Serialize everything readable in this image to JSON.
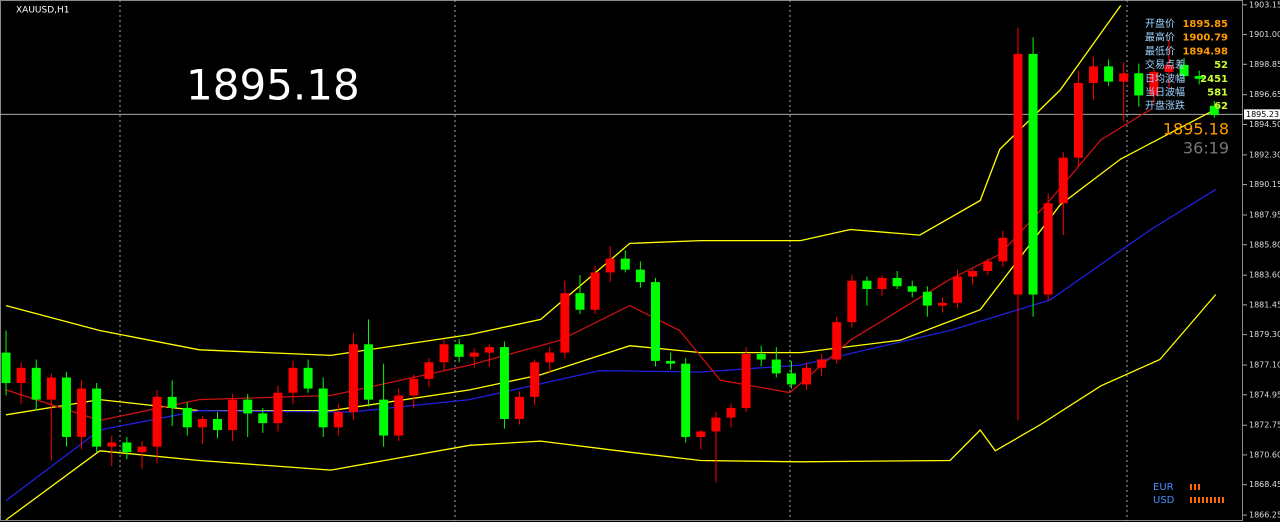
{
  "chart_data": {
    "type": "candlestick",
    "title": "XAUUSD,H1",
    "big_price": 1895.18,
    "last_price": 1895.18,
    "countdown": "36:19",
    "bid_line": 1895.23,
    "up_color": "#ff0000",
    "down_color": "#00ff00",
    "xlim": [
      -0.4,
      81.9
    ],
    "ylim": [
      1865.75,
      1903.5
    ],
    "yticks": [
      {
        "value": 1903.15,
        "label": "1903.15"
      },
      {
        "value": 1901.0,
        "label": "1901.00"
      },
      {
        "value": 1898.85,
        "label": "1898.85"
      },
      {
        "value": 1896.65,
        "label": "1896.65"
      },
      {
        "value": 1894.5,
        "label": "1894.50"
      },
      {
        "value": 1892.3,
        "label": "1892.30"
      },
      {
        "value": 1890.15,
        "label": "1890.15"
      },
      {
        "value": 1887.95,
        "label": "1887.95"
      },
      {
        "value": 1885.8,
        "label": "1885.80"
      },
      {
        "value": 1883.6,
        "label": "1883.60"
      },
      {
        "value": 1881.45,
        "label": "1881.45"
      },
      {
        "value": 1879.3,
        "label": "1879.30"
      },
      {
        "value": 1877.1,
        "label": "1877.10"
      },
      {
        "value": 1874.95,
        "label": "1874.95"
      },
      {
        "value": 1872.75,
        "label": "1872.75"
      },
      {
        "value": 1870.6,
        "label": "1870.60"
      },
      {
        "value": 1868.45,
        "label": "1868.45"
      },
      {
        "value": 1866.25,
        "label": "1866.25"
      }
    ],
    "ohlc": [
      [
        1878.0,
        1879.6,
        1874.9,
        1875.8
      ],
      [
        1875.8,
        1877.3,
        1874.3,
        1876.9
      ],
      [
        1876.9,
        1877.5,
        1873.8,
        1874.6
      ],
      [
        1874.6,
        1876.5,
        1870.2,
        1876.2
      ],
      [
        1876.2,
        1876.6,
        1871.2,
        1871.9
      ],
      [
        1871.9,
        1876.0,
        1871.0,
        1875.4
      ],
      [
        1875.4,
        1875.8,
        1870.8,
        1871.2
      ],
      [
        1871.2,
        1872.0,
        1869.8,
        1871.5
      ],
      [
        1871.5,
        1871.9,
        1870.3,
        1870.8
      ],
      [
        1870.8,
        1871.6,
        1869.6,
        1871.2
      ],
      [
        1871.2,
        1875.3,
        1870.0,
        1874.8
      ],
      [
        1874.8,
        1876.0,
        1872.7,
        1874.0
      ],
      [
        1874.0,
        1874.4,
        1872.0,
        1872.6
      ],
      [
        1872.6,
        1873.4,
        1871.4,
        1873.2
      ],
      [
        1873.2,
        1873.7,
        1871.8,
        1872.4
      ],
      [
        1872.4,
        1875.0,
        1871.6,
        1874.6
      ],
      [
        1874.6,
        1875.0,
        1871.9,
        1873.6
      ],
      [
        1873.6,
        1874.0,
        1872.2,
        1872.9
      ],
      [
        1872.9,
        1875.6,
        1872.3,
        1875.1
      ],
      [
        1875.1,
        1877.4,
        1874.3,
        1876.9
      ],
      [
        1876.9,
        1877.5,
        1875.1,
        1875.4
      ],
      [
        1875.4,
        1876.2,
        1871.9,
        1872.6
      ],
      [
        1872.6,
        1874.3,
        1872.0,
        1873.7
      ],
      [
        1873.7,
        1879.4,
        1873.1,
        1878.6
      ],
      [
        1878.6,
        1880.4,
        1874.1,
        1874.6
      ],
      [
        1874.6,
        1877.2,
        1871.2,
        1872.0
      ],
      [
        1872.0,
        1875.4,
        1871.6,
        1874.9
      ],
      [
        1874.9,
        1876.4,
        1874.0,
        1876.1
      ],
      [
        1876.1,
        1877.6,
        1875.5,
        1877.3
      ],
      [
        1877.3,
        1879.0,
        1876.7,
        1878.6
      ],
      [
        1878.6,
        1879.0,
        1877.3,
        1877.7
      ],
      [
        1877.7,
        1878.3,
        1876.9,
        1878.0
      ],
      [
        1878.0,
        1878.6,
        1877.0,
        1878.4
      ],
      [
        1878.4,
        1878.8,
        1872.5,
        1873.2
      ],
      [
        1873.2,
        1875.2,
        1872.8,
        1874.8
      ],
      [
        1874.8,
        1877.5,
        1874.2,
        1877.3
      ],
      [
        1877.3,
        1878.4,
        1876.5,
        1878.0
      ],
      [
        1878.0,
        1883.2,
        1877.6,
        1882.3
      ],
      [
        1882.3,
        1883.6,
        1880.8,
        1881.1
      ],
      [
        1881.1,
        1884.3,
        1880.8,
        1883.8
      ],
      [
        1883.8,
        1885.7,
        1883.1,
        1884.8
      ],
      [
        1884.8,
        1885.4,
        1883.8,
        1884.0
      ],
      [
        1884.0,
        1884.6,
        1882.7,
        1883.1
      ],
      [
        1883.1,
        1883.4,
        1877.0,
        1877.4
      ],
      [
        1877.4,
        1878.0,
        1876.8,
        1877.2
      ],
      [
        1877.2,
        1877.6,
        1871.5,
        1871.9
      ],
      [
        1871.9,
        1872.4,
        1871.0,
        1872.3
      ],
      [
        1872.3,
        1873.7,
        1868.6,
        1873.3
      ],
      [
        1873.3,
        1874.3,
        1872.6,
        1874.0
      ],
      [
        1874.0,
        1878.4,
        1873.7,
        1877.9
      ],
      [
        1877.9,
        1878.5,
        1877.0,
        1877.5
      ],
      [
        1877.5,
        1878.4,
        1876.2,
        1876.5
      ],
      [
        1876.5,
        1877.4,
        1875.4,
        1875.7
      ],
      [
        1875.7,
        1877.3,
        1875.3,
        1876.9
      ],
      [
        1876.9,
        1877.9,
        1876.3,
        1877.5
      ],
      [
        1877.5,
        1880.6,
        1877.2,
        1880.2
      ],
      [
        1880.2,
        1883.6,
        1879.8,
        1883.2
      ],
      [
        1883.2,
        1883.5,
        1881.4,
        1882.6
      ],
      [
        1882.6,
        1883.6,
        1882.1,
        1883.4
      ],
      [
        1883.4,
        1883.9,
        1882.6,
        1882.8
      ],
      [
        1882.8,
        1883.2,
        1882.0,
        1882.4
      ],
      [
        1882.4,
        1882.8,
        1880.6,
        1881.4
      ],
      [
        1881.4,
        1882.0,
        1880.9,
        1881.6
      ],
      [
        1881.6,
        1884.0,
        1881.2,
        1883.5
      ],
      [
        1883.5,
        1884.1,
        1882.9,
        1883.9
      ],
      [
        1883.9,
        1884.8,
        1883.6,
        1884.6
      ],
      [
        1884.6,
        1886.8,
        1884.2,
        1886.3
      ],
      [
        1882.2,
        1901.5,
        1873.1,
        1899.6
      ],
      [
        1899.6,
        1900.8,
        1880.6,
        1882.2
      ],
      [
        1882.2,
        1889.5,
        1881.8,
        1888.8
      ],
      [
        1888.8,
        1892.5,
        1886.5,
        1892.1
      ],
      [
        1892.1,
        1898.4,
        1891.5,
        1897.5
      ],
      [
        1897.5,
        1899.4,
        1896.3,
        1898.7
      ],
      [
        1898.7,
        1899.2,
        1897.3,
        1897.6
      ],
      [
        1897.6,
        1899.0,
        1894.7,
        1898.2
      ],
      [
        1898.2,
        1898.9,
        1895.8,
        1896.6
      ],
      [
        1896.6,
        1898.5,
        1896.0,
        1898.3
      ],
      [
        1898.3,
        1900.6,
        1897.1,
        1898.8
      ],
      [
        1898.8,
        1899.3,
        1897.6,
        1898.0
      ],
      [
        1898.0,
        1898.4,
        1897.4,
        1897.8
      ],
      [
        1895.85,
        1896.2,
        1894.98,
        1895.18
      ]
    ],
    "lines": [
      {
        "color": "#ffff00",
        "x": [
          0,
          6.2,
          12.8,
          21.5,
          30.7,
          35.4,
          41.3,
          46,
          52.6,
          55.9,
          60.5,
          64.5,
          65.8,
          69.8,
          73.8
        ],
        "values": [
          1881.4,
          1879.6,
          1878.2,
          1877.8,
          1879.3,
          1880.4,
          1885.9,
          1886.1,
          1886.1,
          1886.9,
          1886.5,
          1889.0,
          1892.7,
          1897.0,
          1903.1
        ]
      },
      {
        "color": "#ffff00",
        "x": [
          0,
          6.2,
          12.8,
          21.5,
          30.7,
          35.4,
          41.3,
          46,
          52.6,
          59.2,
          64.5,
          69.8,
          73.8,
          80.1
        ],
        "values": [
          1873.5,
          1874.6,
          1873.8,
          1873.8,
          1875.3,
          1876.4,
          1878.5,
          1878.0,
          1878.0,
          1878.9,
          1881.1,
          1888.7,
          1892.0,
          1895.6
        ]
      },
      {
        "color": "#ffff00",
        "x": [
          0,
          6.2,
          12.8,
          21.5,
          30.7,
          35.4,
          41.3,
          46,
          52.6,
          62.5,
          64.5,
          65.5,
          68.5,
          72.5,
          76.4,
          80.1
        ],
        "values": [
          1865.9,
          1870.9,
          1870.2,
          1869.5,
          1871.3,
          1871.6,
          1870.8,
          1870.2,
          1870.1,
          1870.2,
          1872.4,
          1870.9,
          1872.8,
          1875.6,
          1877.5,
          1882.2
        ]
      },
      {
        "color": "#2020e0",
        "x": [
          0,
          6.2,
          12.8,
          22.8,
          30.7,
          39.3,
          46,
          52.6,
          62.5,
          69.1,
          75.8,
          80.1
        ],
        "values": [
          1867.3,
          1872.4,
          1873.8,
          1873.7,
          1874.6,
          1876.7,
          1876.6,
          1877.1,
          1879.6,
          1881.8,
          1886.9,
          1889.8
        ]
      },
      {
        "color": "#cc1010",
        "x": [
          0,
          6.2,
          12.8,
          21.5,
          30.7,
          36.7,
          41.3,
          44.6,
          47.3,
          51.9,
          55.9,
          62.5,
          65.8,
          69.1,
          72.5,
          75.8
        ],
        "values": [
          1875.3,
          1873.1,
          1874.6,
          1874.9,
          1877.1,
          1878.9,
          1881.4,
          1879.6,
          1876.0,
          1875.1,
          1878.9,
          1883.3,
          1885.1,
          1889.0,
          1893.4,
          1895.6
        ]
      }
    ],
    "info": [
      {
        "label": "开盘价",
        "value": 1895.85,
        "color": "#ff9900"
      },
      {
        "label": "最高价",
        "value": 1900.79,
        "color": "#ff9900"
      },
      {
        "label": "最低价",
        "value": 1894.98,
        "color": "#ff9900"
      },
      {
        "label": "交易点差",
        "value": 52,
        "color": "#ccff33"
      },
      {
        "label": "日均波幅",
        "value": 2451,
        "color": "#ccff33"
      },
      {
        "label": "当日波幅",
        "value": 581,
        "color": "#ccff33"
      },
      {
        "label": "开盘涨跌",
        "value": 62,
        "color": "#ccff33"
      }
    ],
    "currencies": [
      "EUR",
      "USD"
    ]
  }
}
